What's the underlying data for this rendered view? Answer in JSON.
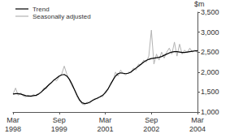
{
  "chart_data": {
    "type": "line",
    "ylabel": "$m",
    "categories": [
      "Mar 1998",
      null,
      null,
      null,
      null,
      null,
      null,
      null,
      null,
      null,
      null,
      null,
      null,
      null,
      null,
      null,
      null,
      null,
      "Sep 1999",
      null,
      null,
      null,
      null,
      null,
      null,
      null,
      null,
      null,
      null,
      null,
      null,
      null,
      null,
      null,
      null,
      null,
      "Mar 2001",
      null,
      null,
      null,
      null,
      null,
      null,
      null,
      null,
      null,
      null,
      null,
      null,
      null,
      null,
      null,
      null,
      null,
      "Sep 2002",
      null,
      null,
      null,
      null,
      null,
      null,
      null,
      null,
      null,
      null,
      null,
      null,
      null,
      null,
      null,
      null,
      null,
      "Mar 2004"
    ],
    "series": [
      {
        "name": "Trend",
        "color": "#000000",
        "values": [
          1450,
          1460,
          1460,
          1450,
          1430,
          1410,
          1400,
          1400,
          1410,
          1420,
          1450,
          1500,
          1560,
          1620,
          1680,
          1740,
          1800,
          1850,
          1900,
          1930,
          1940,
          1900,
          1820,
          1700,
          1560,
          1420,
          1300,
          1230,
          1210,
          1220,
          1250,
          1290,
          1320,
          1350,
          1380,
          1420,
          1480,
          1570,
          1680,
          1800,
          1900,
          1960,
          1980,
          1970,
          1960,
          1970,
          2000,
          2050,
          2100,
          2150,
          2200,
          2250,
          2290,
          2320,
          2340,
          2350,
          2360,
          2370,
          2390,
          2420,
          2450,
          2480,
          2500,
          2510,
          2510,
          2500,
          2490,
          2490,
          2500,
          2510,
          2520,
          2530,
          2530
        ]
      },
      {
        "name": "Seasonally adjusted",
        "color": "#b3b3b3",
        "values": [
          1450,
          1600,
          1420,
          1480,
          1400,
          1380,
          1420,
          1380,
          1440,
          1400,
          1460,
          1480,
          1600,
          1580,
          1700,
          1720,
          1820,
          1780,
          1880,
          1950,
          2150,
          1950,
          1800,
          1650,
          1550,
          1380,
          1280,
          1200,
          1180,
          1250,
          1220,
          1300,
          1340,
          1330,
          1400,
          1380,
          1520,
          1550,
          1720,
          1780,
          2000,
          1900,
          2050,
          1960,
          1930,
          2000,
          1980,
          2100,
          2050,
          2200,
          2180,
          2300,
          2250,
          2400,
          3050,
          2200,
          2450,
          2300,
          2500,
          2350,
          2500,
          2600,
          2450,
          2750,
          2400,
          2700,
          2450,
          2550,
          2480,
          2600,
          2500,
          2550,
          2480
        ]
      }
    ],
    "ylim": [
      1000,
      3500
    ],
    "yticks": [
      1000,
      1500,
      2000,
      2500,
      3000,
      3500
    ],
    "grid": false,
    "legend": "top-left"
  }
}
